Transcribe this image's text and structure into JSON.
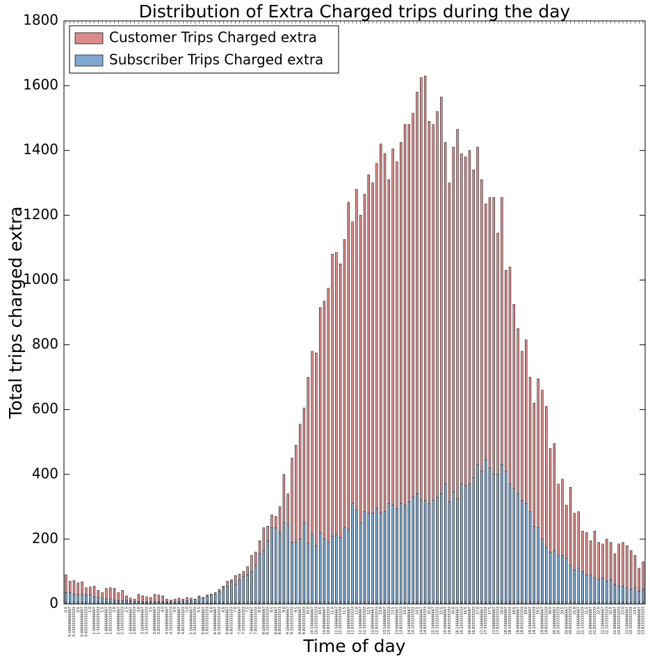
{
  "chart_data": {
    "type": "bar",
    "title": "Distribution of Extra Charged trips during the day",
    "x_label": "Time of day",
    "y_label": "Total trips charged extra",
    "categories": [
      "0.0",
      "0.166666666667",
      "0.333333333333",
      "0.5",
      "0.666666666667",
      "0.833333333333",
      "1.0",
      "1.16666666667",
      "1.33333333333",
      "1.5",
      "1.66666666667",
      "1.83333333333",
      "2.0",
      "2.16666666667",
      "2.33333333333",
      "2.5",
      "2.66666666667",
      "2.83333333333",
      "3.0",
      "3.16666666667",
      "3.33333333333",
      "3.5",
      "3.66666666667",
      "3.83333333333",
      "4.0",
      "4.16666666667",
      "4.33333333333",
      "4.5",
      "4.66666666667",
      "4.83333333333",
      "5.0",
      "5.16666666667",
      "5.33333333333",
      "5.5",
      "5.66666666667",
      "5.83333333333",
      "6.0",
      "6.16666666667",
      "6.33333333333",
      "6.5",
      "6.66666666667",
      "6.83333333333",
      "7.0",
      "7.16666666667",
      "7.33333333333",
      "7.5",
      "7.66666666667",
      "7.83333333333",
      "8.0",
      "8.16666666667",
      "8.33333333333",
      "8.5",
      "8.66666666667",
      "8.83333333333",
      "9.0",
      "9.16666666667",
      "9.33333333333",
      "9.5",
      "9.66666666667",
      "9.83333333333",
      "10.0",
      "10.1666666667",
      "10.3333333333",
      "10.5",
      "10.6666666667",
      "10.8333333333",
      "11.0",
      "11.1666666667",
      "11.3333333333",
      "11.5",
      "11.6666666667",
      "11.8333333333",
      "12.0",
      "12.1666666667",
      "12.3333333333",
      "12.5",
      "12.6666666667",
      "12.8333333333",
      "13.0",
      "13.1666666667",
      "13.3333333333",
      "13.5",
      "13.6666666667",
      "13.8333333333",
      "14.0",
      "14.1666666667",
      "14.3333333333",
      "14.5",
      "14.6666666667",
      "14.8333333333",
      "15.0",
      "15.1666666667",
      "15.3333333333",
      "15.5",
      "15.6666666667",
      "15.8333333333",
      "16.0",
      "16.1666666667",
      "16.3333333333",
      "16.5",
      "16.6666666667",
      "16.8333333333",
      "17.0",
      "17.1666666667",
      "17.3333333333",
      "17.5",
      "17.6666666667",
      "17.8333333333",
      "18.0",
      "18.1666666667",
      "18.3333333333",
      "18.5",
      "18.6666666667",
      "18.8333333333",
      "19.0",
      "19.1666666667",
      "19.3333333333",
      "19.5",
      "19.6666666667",
      "19.8333333333",
      "20.0",
      "20.1666666667",
      "20.3333333333",
      "20.5",
      "20.6666666667",
      "20.8333333333",
      "21.0",
      "21.1666666667",
      "21.3333333333",
      "21.5",
      "21.6666666667",
      "21.8333333333",
      "22.0",
      "22.1666666667",
      "22.3333333333",
      "22.5",
      "22.6666666667",
      "22.8333333333",
      "23.0",
      "23.1666666667",
      "23.3333333333",
      "23.5",
      "23.6666666667",
      "23.8333333333"
    ],
    "series": [
      {
        "name": "Customer Trips Charged extra",
        "color": "#d98a8a",
        "values": [
          90,
          70,
          72,
          65,
          68,
          50,
          52,
          55,
          42,
          35,
          48,
          50,
          48,
          35,
          42,
          25,
          18,
          15,
          30,
          25,
          22,
          20,
          30,
          28,
          25,
          15,
          12,
          15,
          18,
          15,
          20,
          18,
          15,
          25,
          20,
          28,
          30,
          35,
          45,
          55,
          70,
          75,
          88,
          92,
          100,
          115,
          150,
          160,
          195,
          235,
          240,
          275,
          270,
          300,
          400,
          340,
          450,
          490,
          555,
          605,
          700,
          780,
          775,
          915,
          935,
          975,
          1080,
          1085,
          1050,
          1125,
          1240,
          1180,
          1280,
          1200,
          1265,
          1325,
          1300,
          1360,
          1420,
          1390,
          1310,
          1405,
          1365,
          1425,
          1480,
          1480,
          1515,
          1580,
          1625,
          1630,
          1490,
          1480,
          1520,
          1565,
          1425,
          1300,
          1410,
          1465,
          1390,
          1380,
          1400,
          1340,
          1410,
          1310,
          1235,
          1255,
          1255,
          1145,
          1255,
          1030,
          1040,
          925,
          850,
          780,
          815,
          700,
          620,
          695,
          660,
          610,
          480,
          495,
          370,
          385,
          305,
          360,
          280,
          285,
          225,
          220,
          195,
          225,
          190,
          185,
          200,
          190,
          155,
          185,
          190,
          180,
          165,
          150,
          110,
          130
        ]
      },
      {
        "name": "Subscriber Trips Charged extra",
        "color": "#7fa8d0",
        "values": [
          35,
          35,
          30,
          28,
          30,
          28,
          28,
          22,
          20,
          18,
          15,
          15,
          12,
          10,
          10,
          12,
          10,
          8,
          8,
          6,
          6,
          8,
          6,
          6,
          6,
          6,
          5,
          6,
          8,
          8,
          10,
          12,
          14,
          20,
          18,
          22,
          28,
          30,
          38,
          50,
          55,
          70,
          60,
          75,
          85,
          90,
          100,
          120,
          155,
          165,
          195,
          235,
          235,
          220,
          250,
          245,
          190,
          190,
          200,
          250,
          185,
          215,
          180,
          220,
          200,
          190,
          210,
          215,
          205,
          235,
          230,
          310,
          290,
          250,
          285,
          280,
          280,
          295,
          280,
          285,
          310,
          305,
          295,
          310,
          305,
          315,
          330,
          340,
          320,
          320,
          310,
          320,
          330,
          340,
          370,
          315,
          345,
          325,
          370,
          365,
          370,
          390,
          430,
          410,
          445,
          420,
          400,
          400,
          430,
          410,
          370,
          355,
          340,
          320,
          310,
          285,
          240,
          235,
          200,
          175,
          160,
          165,
          150,
          150,
          140,
          120,
          105,
          110,
          100,
          90,
          88,
          80,
          75,
          80,
          70,
          75,
          60,
          55,
          55,
          50,
          45,
          50,
          40,
          45
        ]
      }
    ],
    "ylim": [
      0,
      1800
    ],
    "yticks": [
      0,
      200,
      400,
      600,
      800,
      1000,
      1200,
      1400,
      1600,
      1800
    ],
    "legend": "upper left"
  }
}
